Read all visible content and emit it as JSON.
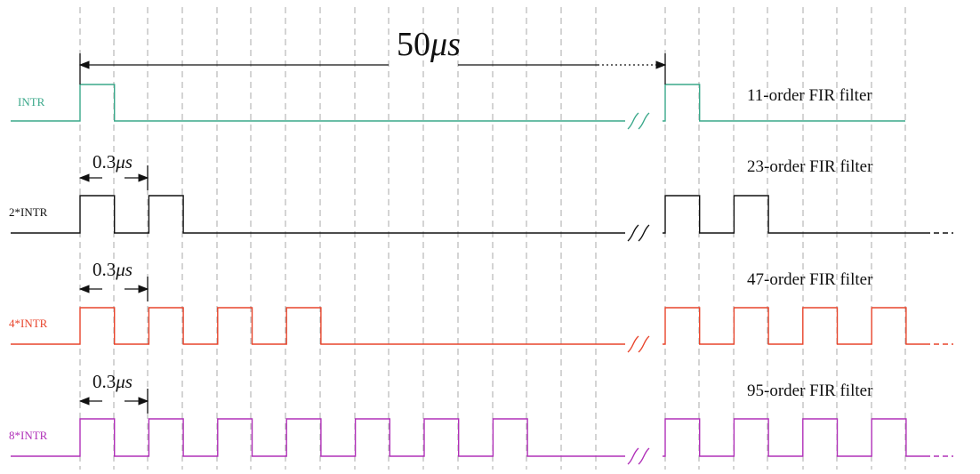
{
  "title_measure": {
    "value": "50",
    "unit": "μs"
  },
  "signals": [
    {
      "label": "INTR",
      "color": "#3aa88a",
      "filter": "11-order FIR filter",
      "pulse_count_before_break": 1,
      "pulse_count_after_break": 1,
      "dashed_tail": false,
      "spacing_value": "",
      "spacing_unit": ""
    },
    {
      "label": "2*INTR",
      "color": "#111111",
      "filter": "23-order FIR filter",
      "pulse_count_before_break": 2,
      "pulse_count_after_break": 2,
      "dashed_tail": true,
      "spacing_value": "0.3",
      "spacing_unit": "μs"
    },
    {
      "label": "4*INTR",
      "color": "#e8452c",
      "filter": "47-order FIR filter",
      "pulse_count_before_break": 4,
      "pulse_count_after_break": 4,
      "dashed_tail": true,
      "spacing_value": "0.3",
      "spacing_unit": "μs"
    },
    {
      "label": "8*INTR",
      "color": "#b030b8",
      "filter": "95-order FIR filter",
      "pulse_count_before_break": 7,
      "pulse_count_after_break": 4,
      "dashed_tail": true,
      "spacing_value": "0.3",
      "spacing_unit": "μs"
    }
  ],
  "colors": {
    "grid": "#aaaaaa",
    "break_mark": "#3aa88a",
    "annotation": "#111111"
  }
}
